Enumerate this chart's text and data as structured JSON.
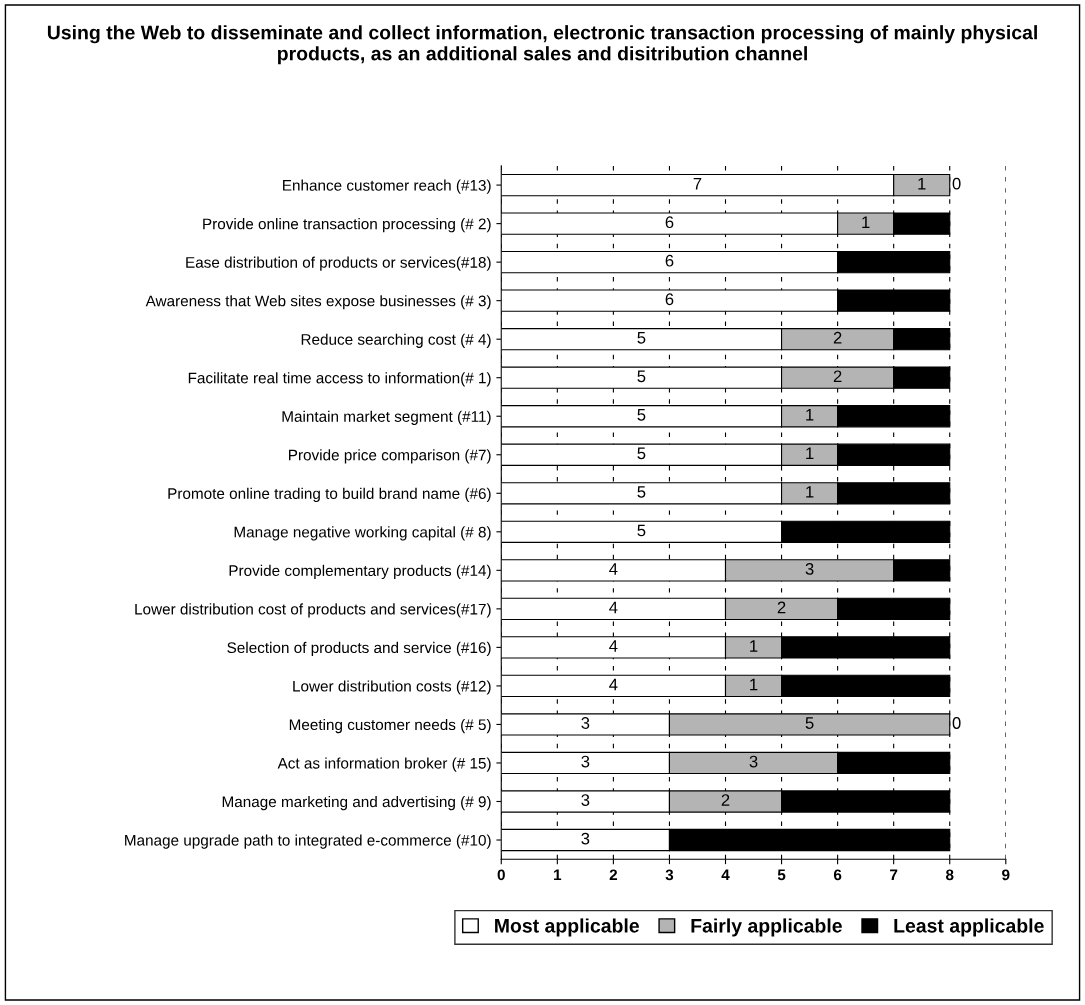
{
  "chart_data": {
    "type": "bar",
    "orientation": "horizontal",
    "stacked": true,
    "title": "Using the Web to disseminate and collect information, electronic transaction processing of mainly physical products, as an additional sales and disitribution channel",
    "categories": [
      "Enhance customer reach (#13)",
      "Provide online transaction processing (# 2)",
      "Ease distribution of products or services(#18)",
      "Awareness that Web sites expose businesses (# 3)",
      "Reduce searching cost (# 4)",
      "Facilitate real time access to information(# 1)",
      "Maintain market segment (#11)",
      "Provide price comparison (#7)",
      "Promote online trading to build brand name (#6)",
      "Manage negative working capital (# 8)",
      "Provide complementary products (#14)",
      "Lower distribution cost of products and services(#17)",
      "Selection of products and service (#16)",
      "Lower distribution costs (#12)",
      "Meeting customer needs (# 5)",
      "Act as information broker (# 15)",
      "Manage marketing and advertising (# 9)",
      "Manage upgrade path to integrated e-commerce (#10)"
    ],
    "series": [
      {
        "name": "Most applicable",
        "color": "#ffffff",
        "values": [
          7,
          6,
          6,
          6,
          5,
          5,
          5,
          5,
          5,
          5,
          4,
          4,
          4,
          4,
          3,
          3,
          3,
          3
        ],
        "value_labels": [
          "7",
          "6",
          "6",
          "6",
          "5",
          "5",
          "5",
          "5",
          "5",
          "5",
          "4",
          "4",
          "4",
          "4",
          "3",
          "3",
          "3",
          "3"
        ]
      },
      {
        "name": "Fairly applicable",
        "color": "#b4b4b4",
        "values": [
          1,
          1,
          0,
          0,
          2,
          2,
          1,
          1,
          1,
          0,
          3,
          2,
          1,
          1,
          5,
          3,
          2,
          0
        ],
        "value_labels": [
          "1",
          "1",
          null,
          null,
          "2",
          "2",
          "1",
          "1",
          "1",
          null,
          "3",
          "2",
          "1",
          "1",
          "5",
          "3",
          "2",
          null
        ]
      },
      {
        "name": "Least applicable",
        "color": "#000000",
        "values": [
          0,
          1,
          2,
          2,
          1,
          1,
          2,
          2,
          2,
          3,
          1,
          2,
          3,
          3,
          0,
          2,
          3,
          5
        ],
        "value_labels": [
          "0",
          null,
          null,
          null,
          null,
          null,
          null,
          null,
          null,
          null,
          null,
          null,
          null,
          null,
          "0",
          null,
          null,
          null
        ]
      }
    ],
    "xlim": [
      0,
      9
    ],
    "xticks": [
      0,
      1,
      2,
      3,
      4,
      5,
      6,
      7,
      8,
      9
    ],
    "grid": "x",
    "legend": "bottom"
  }
}
